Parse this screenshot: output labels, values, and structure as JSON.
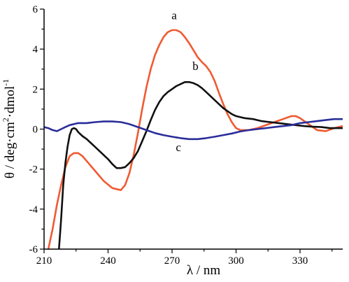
{
  "chart_data": {
    "type": "line",
    "title": "",
    "xlabel": "λ / nm",
    "ylabel_parts": {
      "a": "θ / deg·cm",
      "sup1": "2",
      "b": "·dmol",
      "sup2": "-1"
    },
    "xlim": [
      210,
      350
    ],
    "ylim": [
      -6,
      6
    ],
    "xticks": [
      210,
      240,
      270,
      300,
      330
    ],
    "yticks": [
      -6,
      -4,
      -2,
      0,
      2,
      4,
      6
    ],
    "grid": false,
    "legend": "none",
    "series": [
      {
        "name": "a",
        "color": "#f05a32",
        "label_at": [
          271,
          5.5
        ],
        "x": [
          212,
          214,
          216,
          218,
          220,
          222,
          224,
          226,
          228,
          230,
          234,
          238,
          242,
          246,
          248,
          250,
          252,
          254,
          256,
          258,
          260,
          262,
          264,
          266,
          268,
          270,
          272,
          274,
          276,
          278,
          280,
          282,
          284,
          286,
          288,
          290,
          292,
          294,
          296,
          298,
          300,
          302,
          304,
          306,
          308,
          310,
          314,
          318,
          322,
          326,
          328,
          330,
          334,
          338,
          342,
          346,
          350
        ],
        "y": [
          -6.2,
          -5.0,
          -3.8,
          -2.8,
          -1.9,
          -1.35,
          -1.2,
          -1.2,
          -1.35,
          -1.6,
          -2.1,
          -2.6,
          -2.95,
          -3.05,
          -2.8,
          -2.2,
          -1.3,
          -0.2,
          1.0,
          2.1,
          3.0,
          3.7,
          4.2,
          4.6,
          4.85,
          4.95,
          4.95,
          4.85,
          4.6,
          4.3,
          3.95,
          3.6,
          3.35,
          3.15,
          2.85,
          2.4,
          1.8,
          1.25,
          0.75,
          0.35,
          0.05,
          -0.05,
          -0.05,
          -0.05,
          0.0,
          0.05,
          0.2,
          0.35,
          0.5,
          0.65,
          0.65,
          0.55,
          0.25,
          -0.05,
          -0.1,
          0.05,
          0.15
        ]
      },
      {
        "name": "b",
        "color": "#111111",
        "label_at": [
          281,
          2.95
        ],
        "x": [
          217,
          218,
          219,
          220,
          221,
          222,
          223,
          224,
          225,
          226,
          228,
          230,
          232,
          234,
          236,
          238,
          240,
          242,
          244,
          246,
          248,
          250,
          252,
          254,
          256,
          258,
          260,
          262,
          264,
          266,
          268,
          270,
          272,
          274,
          276,
          278,
          280,
          282,
          284,
          286,
          288,
          290,
          292,
          294,
          296,
          298,
          300,
          302,
          304,
          308,
          312,
          316,
          320,
          324,
          328,
          332,
          336,
          340,
          344,
          348,
          350
        ],
        "y": [
          -6.3,
          -4.5,
          -2.8,
          -1.7,
          -0.9,
          -0.3,
          0.0,
          0.05,
          0.0,
          -0.15,
          -0.35,
          -0.5,
          -0.7,
          -0.9,
          -1.1,
          -1.3,
          -1.5,
          -1.75,
          -1.95,
          -1.95,
          -1.9,
          -1.7,
          -1.45,
          -1.1,
          -0.6,
          -0.1,
          0.45,
          0.95,
          1.35,
          1.65,
          1.85,
          2.0,
          2.15,
          2.25,
          2.35,
          2.35,
          2.3,
          2.2,
          2.05,
          1.85,
          1.65,
          1.45,
          1.25,
          1.05,
          0.9,
          0.75,
          0.65,
          0.6,
          0.55,
          0.5,
          0.4,
          0.35,
          0.3,
          0.25,
          0.2,
          0.15,
          0.12,
          0.1,
          0.05,
          0.05,
          0.05
        ]
      },
      {
        "name": "c",
        "color": "#2a2e9a",
        "label_at": [
          273,
          -1.1
        ],
        "x": [
          210,
          212,
          214,
          216,
          218,
          220,
          222,
          226,
          230,
          234,
          238,
          242,
          246,
          248,
          250,
          254,
          258,
          262,
          266,
          270,
          274,
          278,
          280,
          282,
          286,
          290,
          294,
          298,
          302,
          306,
          310,
          314,
          318,
          322,
          326,
          330,
          334,
          338,
          342,
          346,
          350
        ],
        "y": [
          0.1,
          0.05,
          -0.05,
          -0.1,
          0.0,
          0.1,
          0.2,
          0.3,
          0.3,
          0.35,
          0.38,
          0.38,
          0.35,
          0.3,
          0.25,
          0.1,
          -0.05,
          -0.2,
          -0.3,
          -0.38,
          -0.45,
          -0.5,
          -0.5,
          -0.5,
          -0.45,
          -0.38,
          -0.3,
          -0.22,
          -0.12,
          -0.05,
          0.0,
          0.05,
          0.1,
          0.15,
          0.2,
          0.3,
          0.35,
          0.4,
          0.45,
          0.5,
          0.5
        ]
      }
    ]
  }
}
